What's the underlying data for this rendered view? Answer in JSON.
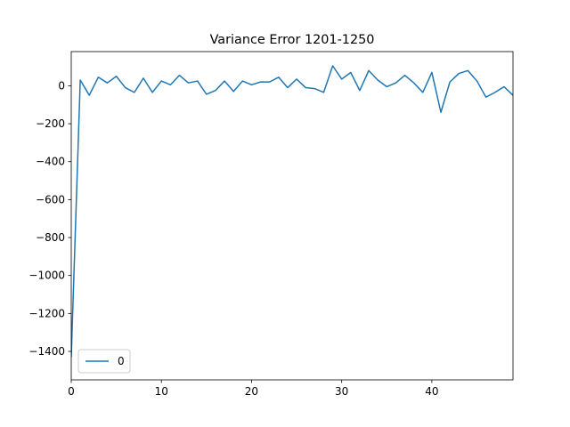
{
  "chart_data": {
    "type": "line",
    "title": "Variance Error 1201-1250",
    "xlabel": "",
    "ylabel": "",
    "xlim": [
      0,
      49
    ],
    "ylim": [
      -1550,
      180
    ],
    "xticks": [
      0,
      10,
      20,
      30,
      40
    ],
    "yticks": [
      0,
      -200,
      -400,
      -600,
      -800,
      -1000,
      -1200,
      -1400
    ],
    "ytick_labels": [
      "0",
      "−200",
      "−400",
      "−600",
      "−800",
      "−1000",
      "−1200",
      "−1400"
    ],
    "grid": false,
    "legend_position": "lower-left",
    "series": [
      {
        "name": "0",
        "color": "#1f77b4",
        "x": [
          0,
          1,
          2,
          3,
          4,
          5,
          6,
          7,
          8,
          9,
          10,
          11,
          12,
          13,
          14,
          15,
          16,
          17,
          18,
          19,
          20,
          21,
          22,
          23,
          24,
          25,
          26,
          27,
          28,
          29,
          30,
          31,
          32,
          33,
          34,
          35,
          36,
          37,
          38,
          39,
          40,
          41,
          42,
          43,
          44,
          45,
          46,
          47,
          48,
          49
        ],
        "values": [
          -1430,
          30,
          -50,
          45,
          15,
          50,
          -10,
          -35,
          40,
          -35,
          25,
          5,
          55,
          15,
          25,
          -45,
          -25,
          25,
          -30,
          25,
          5,
          20,
          20,
          45,
          -10,
          35,
          -10,
          -15,
          -35,
          105,
          35,
          70,
          -25,
          80,
          30,
          -5,
          15,
          55,
          15,
          -35,
          70,
          -140,
          20,
          65,
          80,
          25,
          -60,
          -35,
          -5,
          -50
        ]
      }
    ]
  }
}
